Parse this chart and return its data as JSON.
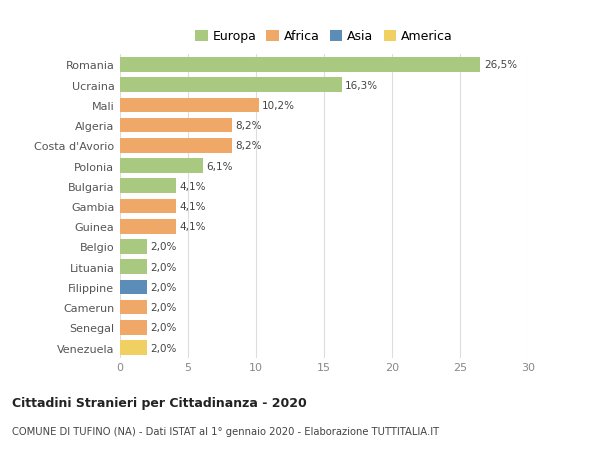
{
  "categories": [
    "Romania",
    "Ucraina",
    "Mali",
    "Algeria",
    "Costa d'Avorio",
    "Polonia",
    "Bulgaria",
    "Gambia",
    "Guinea",
    "Belgio",
    "Lituania",
    "Filippine",
    "Camerun",
    "Senegal",
    "Venezuela"
  ],
  "values": [
    26.5,
    16.3,
    10.2,
    8.2,
    8.2,
    6.1,
    4.1,
    4.1,
    4.1,
    2.0,
    2.0,
    2.0,
    2.0,
    2.0,
    2.0
  ],
  "labels": [
    "26,5%",
    "16,3%",
    "10,2%",
    "8,2%",
    "8,2%",
    "6,1%",
    "4,1%",
    "4,1%",
    "4,1%",
    "2,0%",
    "2,0%",
    "2,0%",
    "2,0%",
    "2,0%",
    "2,0%"
  ],
  "continent": [
    "Europa",
    "Europa",
    "Africa",
    "Africa",
    "Africa",
    "Europa",
    "Europa",
    "Africa",
    "Africa",
    "Europa",
    "Europa",
    "Asia",
    "Africa",
    "Africa",
    "America"
  ],
  "colors": {
    "Europa": "#a8c97f",
    "Africa": "#f0a868",
    "Asia": "#5b8db8",
    "America": "#f0d060"
  },
  "xlim": [
    0,
    30
  ],
  "xticks": [
    0,
    5,
    10,
    15,
    20,
    25,
    30
  ],
  "title": "Cittadini Stranieri per Cittadinanza - 2020",
  "subtitle": "COMUNE DI TUFINO (NA) - Dati ISTAT al 1° gennaio 2020 - Elaborazione TUTTITALIA.IT",
  "background_color": "#ffffff",
  "grid_color": "#dddddd",
  "bar_height": 0.72,
  "legend_order": [
    "Europa",
    "Africa",
    "Asia",
    "America"
  ]
}
